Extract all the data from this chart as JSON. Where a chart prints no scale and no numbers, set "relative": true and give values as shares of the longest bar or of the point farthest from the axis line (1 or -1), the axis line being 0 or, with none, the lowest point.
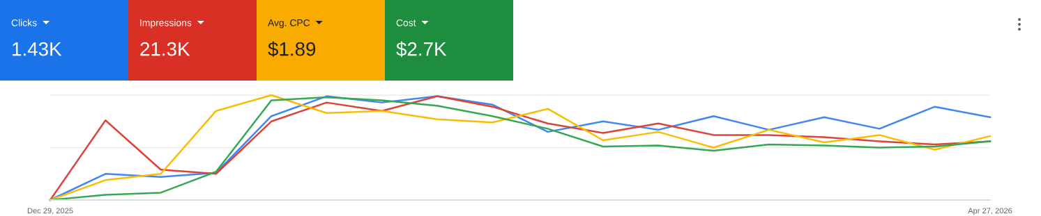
{
  "chart_data": [
    {
      "type": "other",
      "categories": [
        "Clicks",
        "Impressions",
        "Avg. CPC",
        "Cost"
      ],
      "annotations": [
        "1.43K",
        "21.3K",
        "$1.89",
        "$2.7K"
      ],
      "colors": [
        "#1a73e8",
        "#d93025",
        "#f9ab00",
        "#1e8e3e"
      ]
    },
    {
      "type": "line",
      "relative": true,
      "ref_lines": [
        {
          "axis": "y",
          "value": 0.5,
          "color": "#ebebeb"
        },
        {
          "axis": "y",
          "value": 1.0,
          "color": "#ebebeb"
        }
      ],
      "marker": "none",
      "line_style": "solid",
      "x": [
        "2025-12-29",
        "2026-01-05",
        "2026-01-12",
        "2026-01-19",
        "2026-01-26",
        "2026-02-02",
        "2026-02-09",
        "2026-02-16",
        "2026-02-23",
        "2026-03-02",
        "2026-03-09",
        "2026-03-16",
        "2026-03-23",
        "2026-03-30",
        "2026-04-06",
        "2026-04-13",
        "2026-04-20",
        "2026-04-27"
      ],
      "xlim": [
        "2025-12-29",
        "2026-04-27"
      ],
      "xticks": [
        {
          "value": "2025-12-29",
          "label": "Dec 29, 2025"
        },
        {
          "value": "2026-04-27",
          "label": "Apr 27, 2026"
        }
      ],
      "series": [
        {
          "color": "#4285f4",
          "values": [
            0,
            0.25,
            0.22,
            0.26,
            0.8,
            0.99,
            0.93,
            0.99,
            0.91,
            0.65,
            0.75,
            0.67,
            0.8,
            0.67,
            0.79,
            0.68,
            0.89,
            0.79
          ]
        },
        {
          "color": "#db4437",
          "values": [
            0,
            0.76,
            0.29,
            0.25,
            0.75,
            0.93,
            0.85,
            0.99,
            0.89,
            0.73,
            0.64,
            0.73,
            0.62,
            0.62,
            0.6,
            0.56,
            0.53,
            0.56
          ]
        },
        {
          "color": "#fbbc04",
          "values": [
            0,
            0.19,
            0.25,
            0.85,
            1.0,
            0.83,
            0.85,
            0.77,
            0.74,
            0.87,
            0.57,
            0.65,
            0.5,
            0.67,
            0.55,
            0.62,
            0.48,
            0.61
          ]
        },
        {
          "color": "#34a853",
          "values": [
            0,
            0.05,
            0.07,
            0.27,
            0.95,
            0.98,
            0.95,
            0.9,
            0.8,
            0.68,
            0.51,
            0.52,
            0.47,
            0.53,
            0.52,
            0.5,
            0.51,
            0.56
          ]
        }
      ]
    }
  ]
}
